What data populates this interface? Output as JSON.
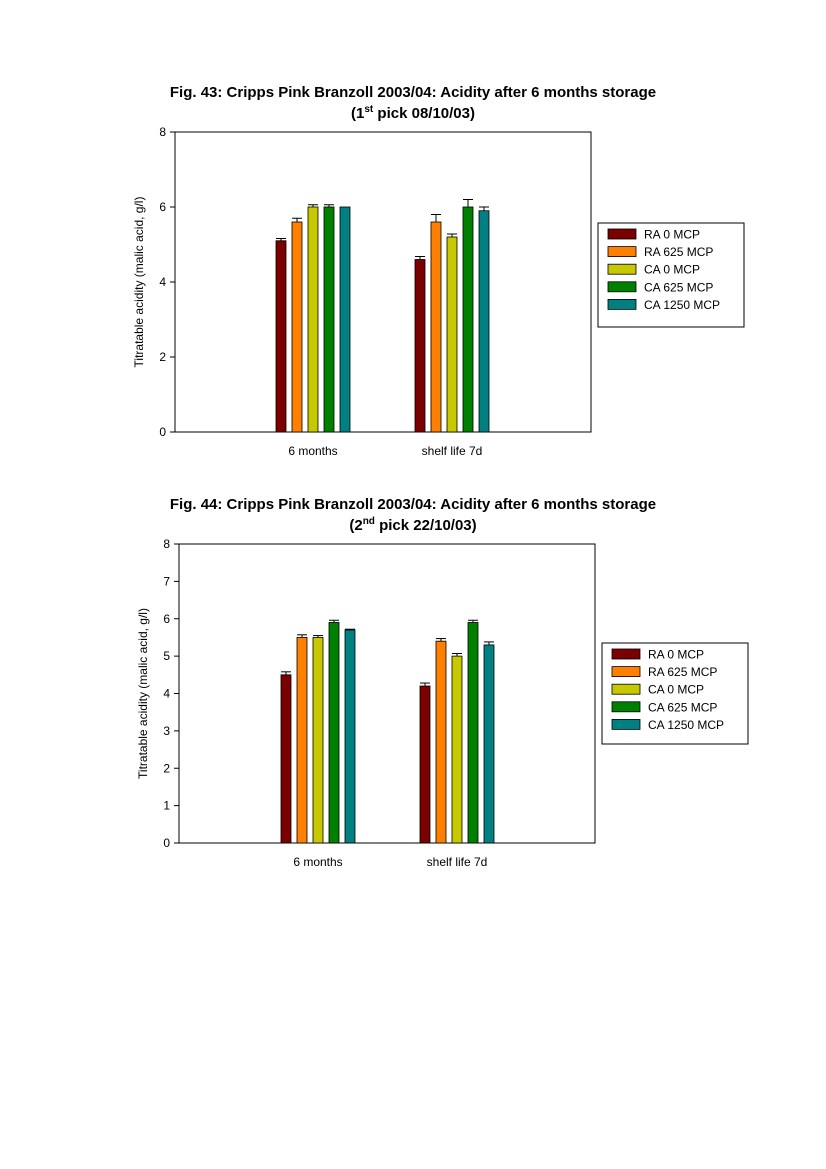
{
  "colors": {
    "RA 0 MCP": "#7b0000",
    "RA 625 MCP": "#ff8000",
    "CA 0 MCP": "#c8c800",
    "CA 625 MCP": "#008000",
    "CA 1250 MCP": "#008080"
  },
  "chart_data": [
    {
      "type": "bar",
      "title_line1": "Fig. 43: Cripps Pink Branzoll 2003/04: Acidity  after 6 months storage",
      "title_line2_pre": "(1",
      "title_line2_sup": "st",
      "title_line2_post": " pick 08/10/03)",
      "ylabel": "Titratable acidity (malic acid, g/l)",
      "xlabel": "",
      "ylim": [
        0,
        8
      ],
      "yticks": [
        "0",
        "2",
        "4",
        "6",
        "8"
      ],
      "categories": [
        "6 months",
        "shelf life 7d"
      ],
      "legend_position": "right",
      "series": [
        {
          "name": "RA 0 MCP",
          "values": [
            5.1,
            4.6
          ],
          "errors": [
            0.06,
            0.08
          ]
        },
        {
          "name": "RA 625 MCP",
          "values": [
            5.6,
            5.6
          ],
          "errors": [
            0.1,
            0.2
          ]
        },
        {
          "name": "CA 0 MCP",
          "values": [
            6.0,
            5.2
          ],
          "errors": [
            0.06,
            0.08
          ]
        },
        {
          "name": "CA 625 MCP",
          "values": [
            6.0,
            6.0
          ],
          "errors": [
            0.06,
            0.2
          ]
        },
        {
          "name": "CA 1250 MCP",
          "values": [
            6.0,
            5.9
          ],
          "errors": [
            0.0,
            0.1
          ]
        }
      ]
    },
    {
      "type": "bar",
      "title_line1": "Fig. 44: Cripps Pink Branzoll 2003/04: Acidity after 6 months storage",
      "title_line2_pre": "(2",
      "title_line2_sup": "nd",
      "title_line2_post": " pick 22/10/03)",
      "ylabel": "Titratable acidity (malic acid, g/l)",
      "xlabel": "",
      "ylim": [
        0,
        8
      ],
      "yticks": [
        "0",
        "1",
        "2",
        "3",
        "4",
        "5",
        "6",
        "7",
        "8"
      ],
      "categories": [
        "6 months",
        "shelf life 7d"
      ],
      "legend_position": "right",
      "series": [
        {
          "name": "RA 0 MCP",
          "values": [
            4.5,
            4.2
          ],
          "errors": [
            0.08,
            0.08
          ]
        },
        {
          "name": "RA 625 MCP",
          "values": [
            5.5,
            5.4
          ],
          "errors": [
            0.07,
            0.07
          ]
        },
        {
          "name": "CA 0 MCP",
          "values": [
            5.5,
            5.0
          ],
          "errors": [
            0.05,
            0.07
          ]
        },
        {
          "name": "CA 625 MCP",
          "values": [
            5.9,
            5.9
          ],
          "errors": [
            0.06,
            0.06
          ]
        },
        {
          "name": "CA 1250 MCP",
          "values": [
            5.7,
            5.3
          ],
          "errors": [
            0.02,
            0.08
          ]
        }
      ]
    }
  ]
}
